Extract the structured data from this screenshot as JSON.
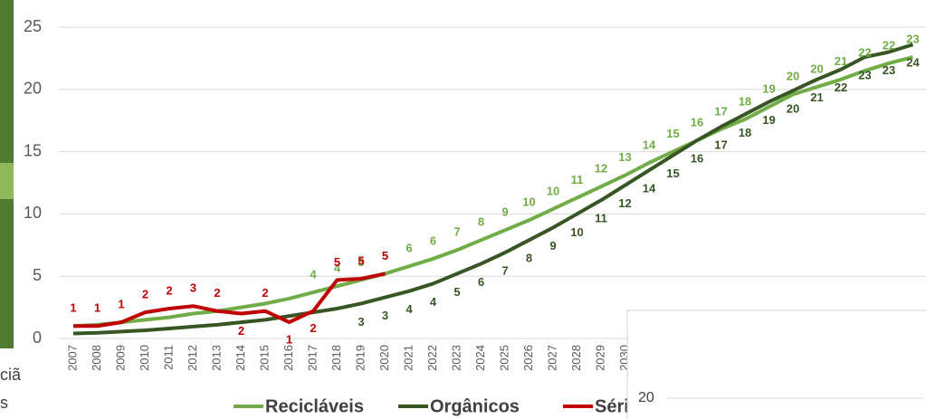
{
  "chart_data": {
    "type": "line",
    "categories": [
      "2007",
      "2008",
      "2009",
      "2010",
      "2011",
      "2012",
      "2013",
      "2014",
      "2015",
      "2016",
      "2017",
      "2018",
      "2019",
      "2020",
      "2021",
      "2022",
      "2023",
      "2024",
      "2025",
      "2026",
      "2027",
      "2028",
      "2029",
      "2030",
      null,
      null,
      null,
      null,
      null,
      null,
      null,
      null,
      null,
      null,
      null,
      null
    ],
    "ylim": [
      0,
      25
    ],
    "yticks": [
      0,
      5,
      10,
      15,
      20,
      25
    ],
    "grid": true,
    "series": [
      {
        "name": "Recicláveis",
        "color": "#70ad47",
        "values": [
          1.0,
          1.1,
          1.3,
          1.5,
          1.7,
          2.0,
          2.2,
          2.5,
          2.8,
          3.2,
          3.7,
          4.2,
          4.7,
          5.2,
          5.8,
          6.4,
          7.1,
          7.9,
          8.7,
          9.5,
          10.4,
          11.3,
          12.2,
          13.1,
          14.1,
          15.0,
          15.9,
          16.8,
          17.6,
          18.6,
          19.6,
          20.2,
          20.8,
          21.5,
          22.1,
          22.6
        ],
        "value_labels": [
          null,
          null,
          null,
          null,
          null,
          null,
          null,
          null,
          null,
          null,
          "4",
          "4",
          "5",
          "5",
          "6",
          "6",
          "7",
          "8",
          "9",
          "10",
          "10",
          "11",
          "12",
          "13",
          "14",
          "15",
          "16",
          "17",
          "18",
          "19",
          "20",
          "20",
          "21",
          "22",
          "22",
          "23"
        ]
      },
      {
        "name": "Orgânicos",
        "color": "#375623",
        "values": [
          0.4,
          0.45,
          0.55,
          0.65,
          0.8,
          0.95,
          1.1,
          1.3,
          1.5,
          1.8,
          2.1,
          2.4,
          2.8,
          3.3,
          3.8,
          4.4,
          5.2,
          6.0,
          6.9,
          7.9,
          8.9,
          10.0,
          11.1,
          12.3,
          13.5,
          14.7,
          15.9,
          17.0,
          18.0,
          19.0,
          19.9,
          20.8,
          21.6,
          22.6,
          23.0,
          23.6
        ],
        "value_labels": [
          null,
          null,
          null,
          null,
          null,
          null,
          null,
          null,
          null,
          null,
          null,
          null,
          "3",
          "3",
          "4",
          "4",
          "5",
          "6",
          "7",
          "8",
          "9",
          "10",
          "11",
          "12",
          "14",
          "15",
          "16",
          "17",
          "18",
          "19",
          "20",
          "21",
          "22",
          "23",
          "23",
          "24"
        ]
      },
      {
        "name": "Séri",
        "color": "#c00000",
        "values": [
          1.0,
          1.0,
          1.3,
          2.1,
          2.4,
          2.6,
          2.2,
          2.0,
          2.2,
          1.3,
          2.2,
          4.7,
          4.8,
          5.2,
          null,
          null,
          null,
          null,
          null,
          null,
          null,
          null,
          null,
          null,
          null,
          null,
          null,
          null,
          null,
          null,
          null,
          null,
          null,
          null,
          null,
          null
        ],
        "value_labels": [
          "1",
          "1",
          "1",
          "2",
          "2",
          "3",
          "2",
          "2",
          "2",
          "1",
          "2",
          "5",
          "5",
          "5",
          null,
          null,
          null,
          null,
          null,
          null,
          null,
          null,
          null,
          null,
          null,
          null,
          null,
          null,
          null,
          null,
          null,
          null,
          null,
          null,
          null,
          null
        ]
      }
    ]
  },
  "side_text": [
    "ciã",
    "s"
  ],
  "overlay": {
    "label": "20"
  }
}
